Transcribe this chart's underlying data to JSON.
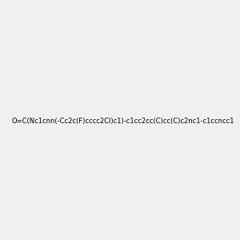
{
  "smiles": "O=C(Nc1cnn(-Cc2c(F)cccc2Cl)c1)-c1cc2cc(C)cc(C)c2nc1-c1ccncc1",
  "title": "",
  "background_color": "#f0f0f0",
  "figsize": [
    3.0,
    3.0
  ],
  "dpi": 100,
  "atom_colors": {
    "N": [
      0,
      0,
      1
    ],
    "O": [
      1,
      0,
      0
    ],
    "F": [
      0.8,
      0,
      0.8
    ],
    "Cl": [
      0,
      0.8,
      0
    ]
  }
}
